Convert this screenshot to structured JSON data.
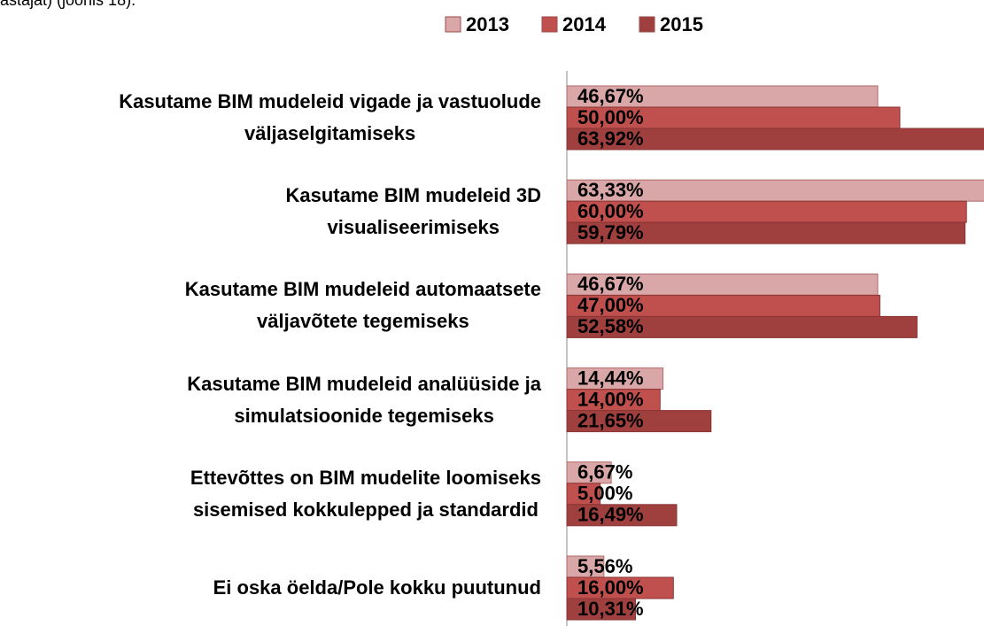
{
  "chart_data": {
    "type": "bar",
    "orientation": "horizontal",
    "annotation": "astajat) (joonis 18).",
    "categories": [
      [
        "Kasutame BIM mudeleid vigade ja vastuolude",
        "väljaselgitamiseks"
      ],
      [
        "Kasutame BIM mudeleid 3D",
        "visualiseerimiseks"
      ],
      [
        "Kasutame BIM mudeleid automaatsete",
        "väljavõtete tegemiseks"
      ],
      [
        "Kasutame BIM mudeleid analüüside ja",
        "simulatsioonide tegemiseks"
      ],
      [
        "Ettevõttes on BIM mudelite loomiseks",
        "sisemised kokkulepped ja standardid"
      ],
      [
        "Ei oska öelda/Pole kokku puutunud"
      ]
    ],
    "series": [
      {
        "name": "2013",
        "color": "#d9a7a7",
        "values": [
          46.67,
          63.33,
          46.67,
          14.44,
          6.67,
          5.56
        ],
        "value_labels": [
          "46,67%",
          "63,33%",
          "46,67%",
          "14,44%",
          "6,67%",
          "5,56%"
        ]
      },
      {
        "name": "2014",
        "color": "#c0504d",
        "values": [
          50.0,
          60.0,
          47.0,
          14.0,
          5.0,
          16.0
        ],
        "value_labels": [
          "50,00%",
          "60,00%",
          "47,00%",
          "14,00%",
          "5,00%",
          "16,00%"
        ]
      },
      {
        "name": "2015",
        "color": "#a0403e",
        "values": [
          63.92,
          59.79,
          52.58,
          21.65,
          16.49,
          10.31
        ],
        "value_labels": [
          "63,92%",
          "59,79%",
          "52,58%",
          "21,65%",
          "16,49%",
          "10,31%"
        ]
      }
    ],
    "legend": "top"
  }
}
